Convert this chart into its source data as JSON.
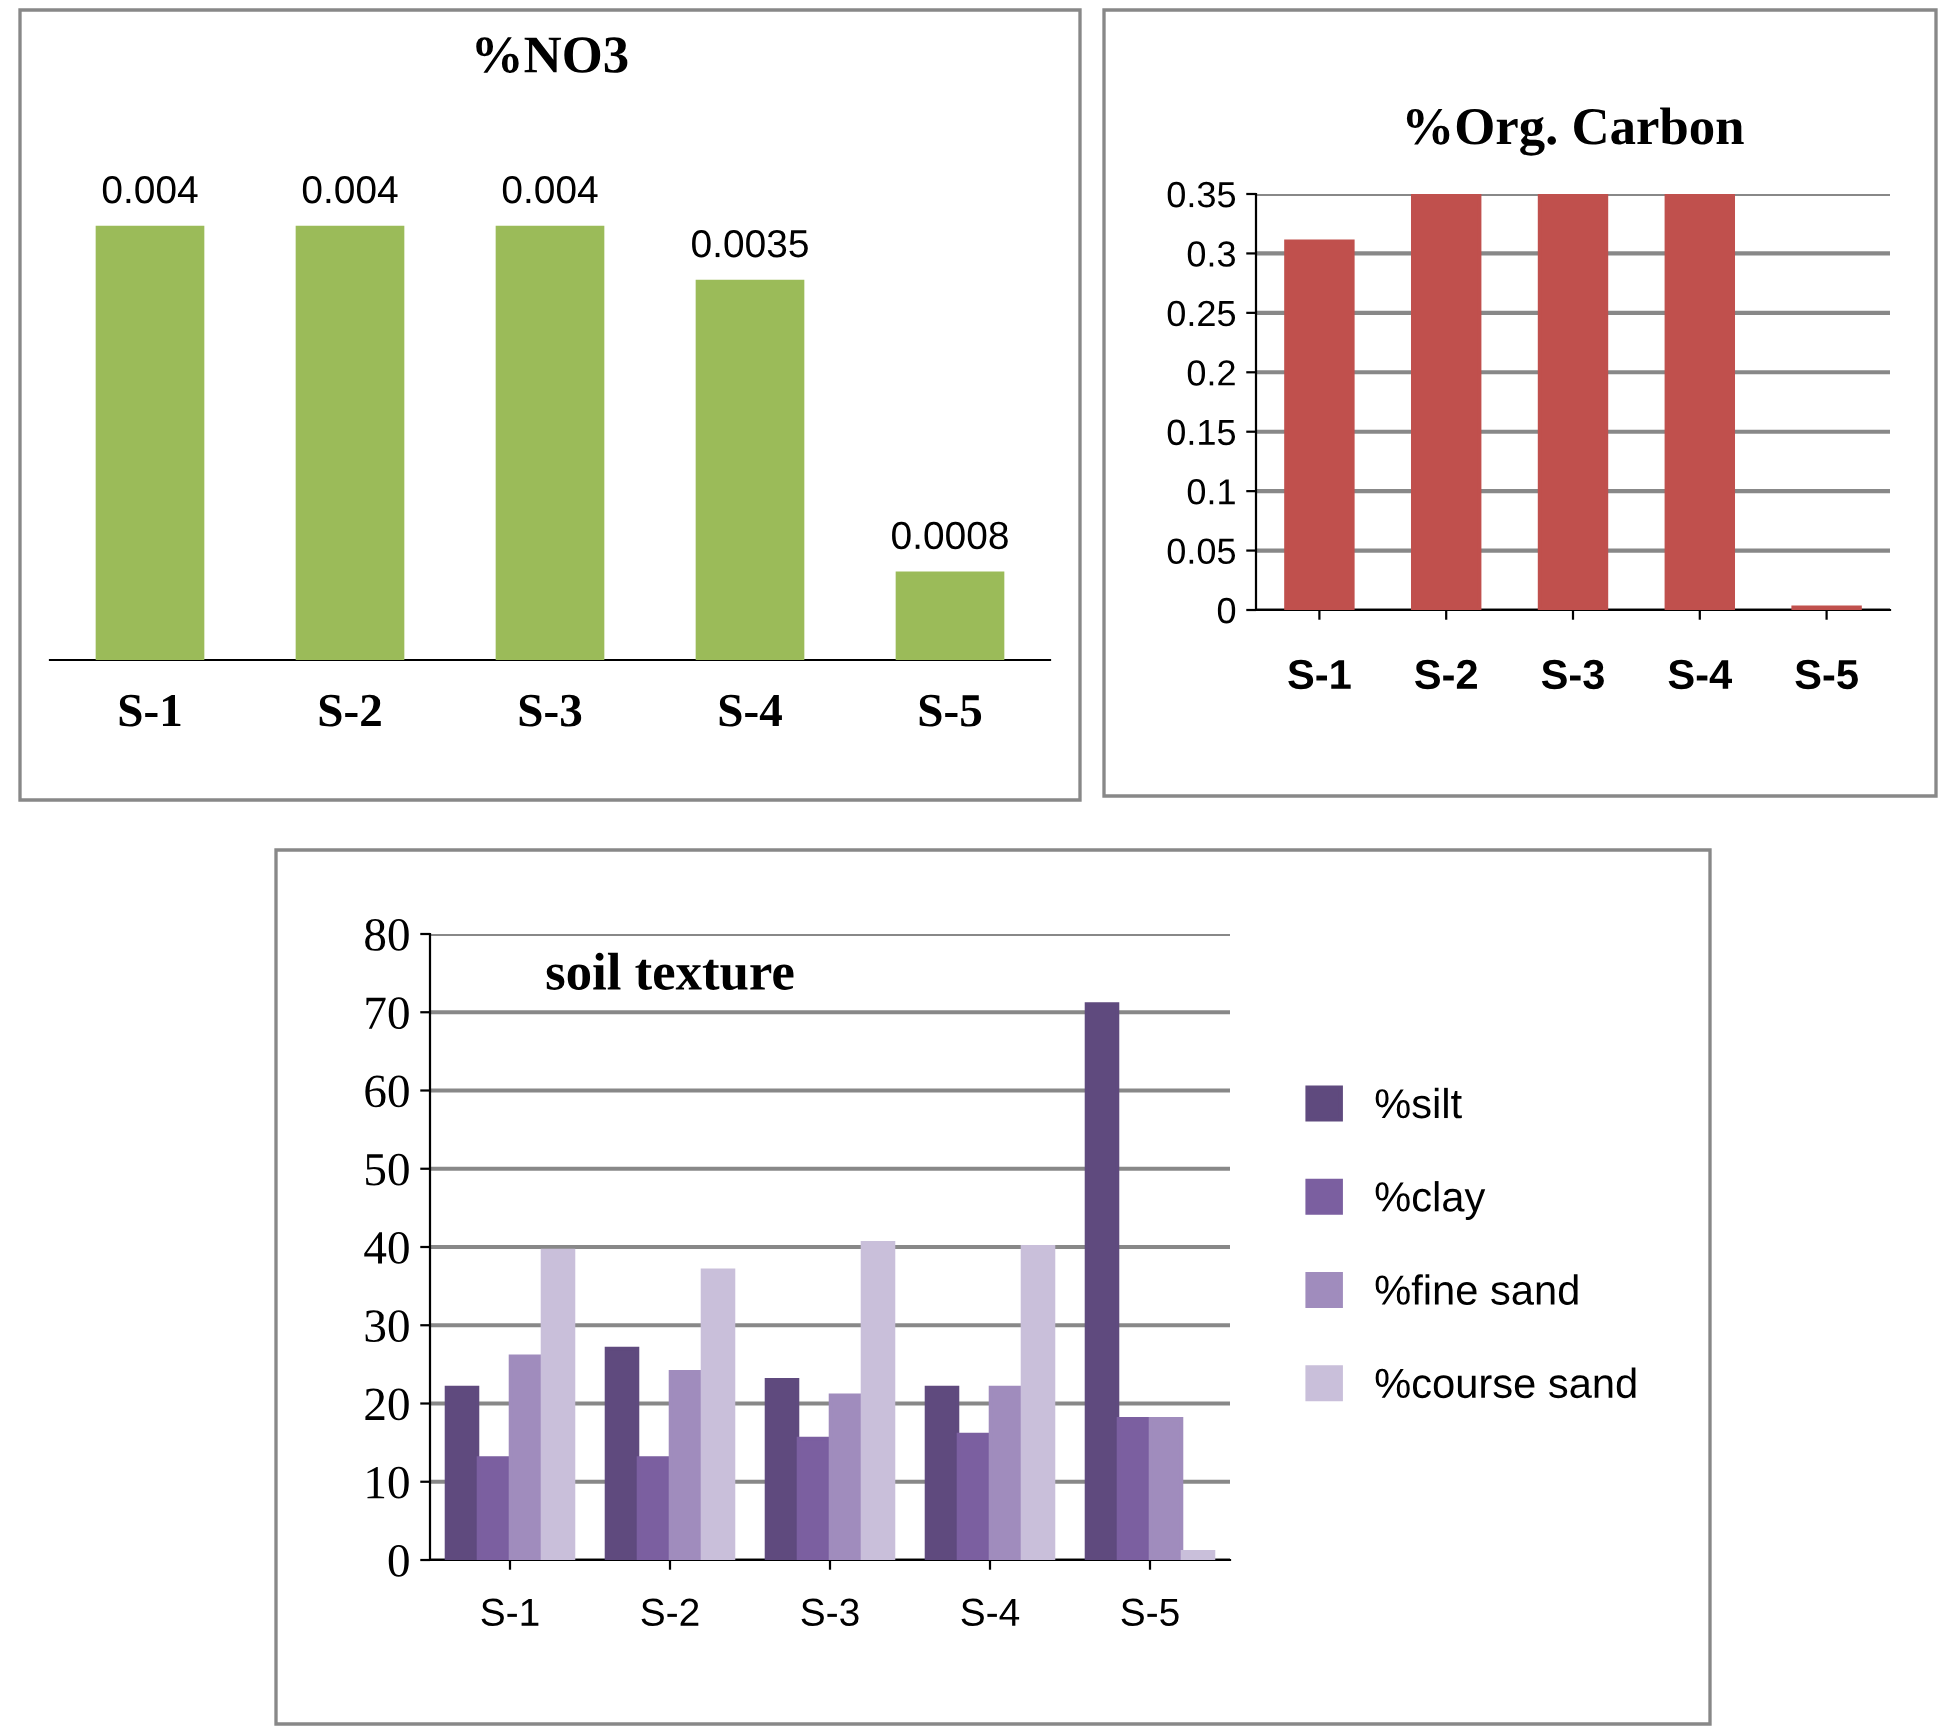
{
  "chart_data": [
    {
      "type": "bar",
      "title": "%NO3",
      "categories": [
        "S-1",
        "S-2",
        "S-3",
        "S-4",
        "S-5"
      ],
      "values": [
        0.004,
        0.004,
        0.004,
        0.0035,
        0.0008
      ],
      "color": "#9bbb59",
      "data_labels": true,
      "tick_labels": "x",
      "grid": false,
      "legend": false
    },
    {
      "type": "bar",
      "title": "%Org. Carbon",
      "categories": [
        "S-1",
        "S-2",
        "S-3",
        "S-4",
        "S-5"
      ],
      "values": [
        0.31,
        0.35,
        0.35,
        0.35,
        0.002
      ],
      "color": "#c0504d",
      "ylim": [
        0,
        0.35
      ],
      "yticks": [
        0,
        0.05,
        0.1,
        0.15,
        0.2,
        0.25,
        0.3,
        0.35
      ],
      "grid": "y",
      "legend": false
    },
    {
      "type": "bar",
      "title": "soil texture",
      "categories": [
        "S-1",
        "S-2",
        "S-3",
        "S-4",
        "S-5"
      ],
      "ylim": [
        0,
        80
      ],
      "yticks": [
        0,
        10,
        20,
        30,
        40,
        50,
        60,
        70,
        80
      ],
      "grid": "y",
      "legend": "right",
      "series": [
        {
          "name": "%silt",
          "color": "#5f4a7e",
          "values": [
            22,
            27,
            23,
            22,
            71
          ]
        },
        {
          "name": "%clay",
          "color": "#7b5fa0",
          "values": [
            13,
            13,
            15.5,
            16,
            18
          ]
        },
        {
          "name": "%fine sand",
          "color": "#a08cbd",
          "values": [
            26,
            24,
            21,
            22,
            18
          ]
        },
        {
          "name": "%course sand",
          "color": "#c9bfda",
          "values": [
            39.5,
            37,
            40.5,
            40,
            1
          ]
        }
      ]
    }
  ]
}
